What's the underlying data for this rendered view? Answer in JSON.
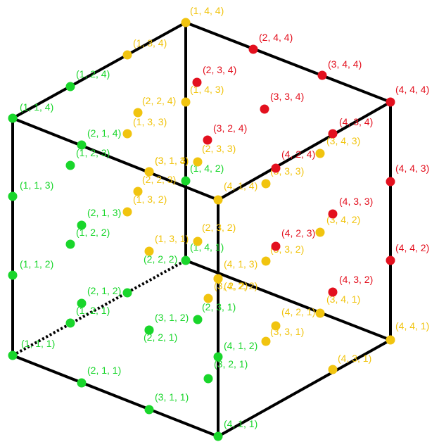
{
  "colors": {
    "green": "#19d62b",
    "yellow": "#f1c40f",
    "red": "#e3101e",
    "edge": "#000000"
  },
  "points": [
    {
      "id": "1-1-1",
      "label": "(1, 1, 1)",
      "color": "green"
    },
    {
      "id": "1-1-2",
      "label": "(1, 1, 2)",
      "color": "green"
    },
    {
      "id": "1-1-3",
      "label": "(1, 1, 3)",
      "color": "green"
    },
    {
      "id": "1-1-4",
      "label": "(1, 1, 4)",
      "color": "green"
    },
    {
      "id": "1-2-1",
      "label": "(1, 2, 1)",
      "color": "green"
    },
    {
      "id": "1-2-2",
      "label": "(1, 2, 2)",
      "color": "green"
    },
    {
      "id": "1-2-3",
      "label": "(1, 2, 3)",
      "color": "green"
    },
    {
      "id": "1-2-4",
      "label": "(1, 2, 4)",
      "color": "green"
    },
    {
      "id": "2-1-1",
      "label": "(2, 1, 1)",
      "color": "green"
    },
    {
      "id": "2-1-2",
      "label": "(2, 1, 2)",
      "color": "green"
    },
    {
      "id": "2-1-3",
      "label": "(2, 1, 3)",
      "color": "green"
    },
    {
      "id": "2-1-4",
      "label": "(2, 1, 4)",
      "color": "green"
    },
    {
      "id": "2-2-1",
      "label": "(2, 2, 1)",
      "color": "green"
    },
    {
      "id": "2-2-2",
      "label": "(2, 2, 2)",
      "color": "green"
    },
    {
      "id": "3-1-1",
      "label": "(3, 1, 1)",
      "color": "green"
    },
    {
      "id": "3-1-2",
      "label": "(3, 1, 2)",
      "color": "green"
    },
    {
      "id": "4-1-1",
      "label": "(4, 1, 1)",
      "color": "green"
    },
    {
      "id": "4-1-2",
      "label": "(4, 1, 2)",
      "color": "green"
    },
    {
      "id": "1-4-1",
      "label": "(1, 4, 1)",
      "color": "green"
    },
    {
      "id": "1-4-2",
      "label": "(1, 4, 2)",
      "color": "green"
    },
    {
      "id": "2-3-1",
      "label": "(2, 3, 1)",
      "color": "green"
    },
    {
      "id": "3-2-1",
      "label": "(3, 2, 1)",
      "color": "green"
    },
    {
      "id": "1-3-1",
      "label": "(1, 3, 1)",
      "color": "yellow"
    },
    {
      "id": "1-3-2",
      "label": "(1, 3, 2)",
      "color": "yellow"
    },
    {
      "id": "1-3-3",
      "label": "(1, 3, 3)",
      "color": "yellow"
    },
    {
      "id": "1-3-4",
      "label": "(1, 3, 4)",
      "color": "yellow"
    },
    {
      "id": "1-4-3",
      "label": "(1, 4, 3)",
      "color": "yellow"
    },
    {
      "id": "1-4-4",
      "label": "(1, 4, 4)",
      "color": "yellow"
    },
    {
      "id": "2-2-3",
      "label": "(2, 2, 3)",
      "color": "yellow"
    },
    {
      "id": "2-2-4",
      "label": "(2, 2, 4)",
      "color": "yellow"
    },
    {
      "id": "2-3-2",
      "label": "(2, 3, 2)",
      "color": "yellow"
    },
    {
      "id": "2-3-3",
      "label": "(2, 3, 3)",
      "color": "yellow"
    },
    {
      "id": "3-1-3",
      "label": "(3, 1, 3)",
      "color": "yellow"
    },
    {
      "id": "3-1-4",
      "label": "(3, 1, 4)",
      "color": "yellow"
    },
    {
      "id": "3-2-2",
      "label": "(3, 2, 2)",
      "color": "yellow"
    },
    {
      "id": "3-3-1",
      "label": "(3, 3, 1)",
      "color": "yellow"
    },
    {
      "id": "3-3-2",
      "label": "(3, 3, 2)",
      "color": "yellow"
    },
    {
      "id": "3-3-3",
      "label": "(3, 3, 3)",
      "color": "yellow"
    },
    {
      "id": "3-4-1",
      "label": "(3, 4, 1)",
      "color": "yellow"
    },
    {
      "id": "3-4-2",
      "label": "(3, 4, 2)",
      "color": "yellow"
    },
    {
      "id": "3-4-3",
      "label": "(3, 4, 3)",
      "color": "yellow"
    },
    {
      "id": "4-1-3",
      "label": "(4, 1, 3)",
      "color": "yellow"
    },
    {
      "id": "4-1-4",
      "label": "(4, 1, 4)",
      "color": "yellow"
    },
    {
      "id": "4-2-1",
      "label": "(4, 2, 1)",
      "color": "yellow"
    },
    {
      "id": "4-2-2",
      "label": "(4, 2, 2)",
      "color": "yellow"
    },
    {
      "id": "4-3-1",
      "label": "(4, 3, 1)",
      "color": "yellow"
    },
    {
      "id": "4-4-1",
      "label": "(4, 4, 1)",
      "color": "yellow"
    },
    {
      "id": "2-3-4",
      "label": "(2, 3, 4)",
      "color": "red"
    },
    {
      "id": "2-4-4",
      "label": "(2, 4, 4)",
      "color": "red"
    },
    {
      "id": "3-2-4",
      "label": "(3, 2, 4)",
      "color": "red"
    },
    {
      "id": "3-3-4",
      "label": "(3, 3, 4)",
      "color": "red"
    },
    {
      "id": "3-4-4",
      "label": "(3, 4, 4)",
      "color": "red"
    },
    {
      "id": "4-2-3",
      "label": "(4, 2, 3)",
      "color": "red"
    },
    {
      "id": "4-2-4",
      "label": "(4, 2, 4)",
      "color": "red"
    },
    {
      "id": "4-3-2",
      "label": "(4, 3, 2)",
      "color": "red"
    },
    {
      "id": "4-3-3",
      "label": "(4, 3, 3)",
      "color": "red"
    },
    {
      "id": "4-3-4",
      "label": "(4, 3, 4)",
      "color": "red"
    },
    {
      "id": "4-4-2",
      "label": "(4, 4, 2)",
      "color": "red"
    },
    {
      "id": "4-4-3",
      "label": "(4, 4, 3)",
      "color": "red"
    },
    {
      "id": "4-4-4",
      "label": "(4, 4, 4)",
      "color": "red"
    }
  ]
}
